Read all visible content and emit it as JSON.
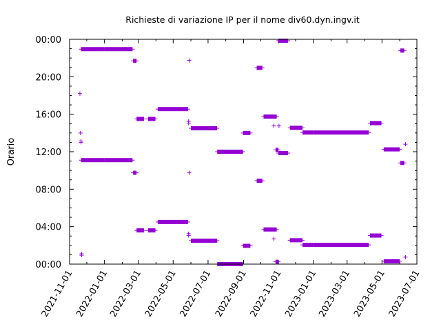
{
  "chart_data": {
    "type": "scatter",
    "title": "Richieste di variazione IP per il nome div60.dyn.ingv.it",
    "ylabel": "Orario",
    "xlabel": "",
    "x_axis": "date",
    "xlim": [
      "2021-11-01",
      "2023-07-01"
    ],
    "ylim_hours": [
      0,
      24
    ],
    "grid": false,
    "marker": "plus",
    "color": "#9400d3",
    "y_ticks": [
      {
        "hour": 0,
        "label": "00:00"
      },
      {
        "hour": 4,
        "label": "04:00"
      },
      {
        "hour": 8,
        "label": "08:00"
      },
      {
        "hour": 12,
        "label": "12:00"
      },
      {
        "hour": 16,
        "label": "16:00"
      },
      {
        "hour": 20,
        "label": "20:00"
      },
      {
        "hour": 24,
        "label": "00:00"
      }
    ],
    "x_ticks": [
      {
        "date": "2021-11-01",
        "label": "2021-11-01"
      },
      {
        "date": "2022-01-01",
        "label": "2022-01-01"
      },
      {
        "date": "2022-03-01",
        "label": "2022-03-01"
      },
      {
        "date": "2022-05-01",
        "label": "2022-05-01"
      },
      {
        "date": "2022-07-01",
        "label": "2022-07-01"
      },
      {
        "date": "2022-09-01",
        "label": "2022-09-01"
      },
      {
        "date": "2022-11-01",
        "label": "2022-11-01"
      },
      {
        "date": "2023-01-01",
        "label": "2023-01-01"
      },
      {
        "date": "2023-03-01",
        "label": "2023-03-01"
      },
      {
        "date": "2023-05-01",
        "label": "2023-05-01"
      },
      {
        "date": "2023-07-01",
        "label": "2023-07-01"
      }
    ],
    "runs": [
      {
        "start": "2021-11-21",
        "end": "2022-01-01",
        "hour": 22.95
      },
      {
        "start": "2022-01-01",
        "end": "2022-02-19",
        "hour": 22.95
      },
      {
        "start": "2021-11-21",
        "end": "2022-01-01",
        "hour": 11.1
      },
      {
        "start": "2022-01-01",
        "end": "2022-02-19",
        "hour": 11.1
      },
      {
        "start": "2022-02-20",
        "end": "2022-02-26",
        "hour": 21.7
      },
      {
        "start": "2022-02-20",
        "end": "2022-02-26",
        "hour": 9.75
      },
      {
        "start": "2022-02-26",
        "end": "2022-03-11",
        "hour": 15.5
      },
      {
        "start": "2022-02-26",
        "end": "2022-03-11",
        "hour": 3.6
      },
      {
        "start": "2022-03-18",
        "end": "2022-03-31",
        "hour": 15.5
      },
      {
        "start": "2022-03-18",
        "end": "2022-03-31",
        "hour": 3.6
      },
      {
        "start": "2022-04-04",
        "end": "2022-05-27",
        "hour": 16.55
      },
      {
        "start": "2022-04-04",
        "end": "2022-05-27",
        "hour": 4.5
      },
      {
        "start": "2022-06-01",
        "end": "2022-07-17",
        "hour": 14.5
      },
      {
        "start": "2022-06-01",
        "end": "2022-07-17",
        "hour": 2.5
      },
      {
        "start": "2022-07-17",
        "end": "2022-08-31",
        "hour": 12.0
      },
      {
        "start": "2022-07-17",
        "end": "2022-08-31",
        "hour": 0.0
      },
      {
        "start": "2022-08-31",
        "end": "2022-09-13",
        "hour": 14.0
      },
      {
        "start": "2022-08-31",
        "end": "2022-09-13",
        "hour": 1.95
      },
      {
        "start": "2022-09-24",
        "end": "2022-10-04",
        "hour": 20.95
      },
      {
        "start": "2022-09-24",
        "end": "2022-10-04",
        "hour": 8.9
      },
      {
        "start": "2022-10-06",
        "end": "2022-10-29",
        "hour": 15.75
      },
      {
        "start": "2022-10-06",
        "end": "2022-10-29",
        "hour": 3.7
      },
      {
        "start": "2022-10-27",
        "end": "2022-11-01",
        "hour": 12.2
      },
      {
        "start": "2022-10-27",
        "end": "2022-11-01",
        "hour": 0.25
      },
      {
        "start": "2022-11-01",
        "end": "2022-11-18",
        "hour": 11.85
      },
      {
        "start": "2022-11-01",
        "end": "2022-11-18",
        "hour": 23.85
      },
      {
        "start": "2022-11-21",
        "end": "2022-12-13",
        "hour": 14.55
      },
      {
        "start": "2022-11-21",
        "end": "2022-12-13",
        "hour": 2.55
      },
      {
        "start": "2022-12-13",
        "end": "2023-01-01",
        "hour": 14.05
      },
      {
        "start": "2022-12-13",
        "end": "2023-01-01",
        "hour": 2.05
      },
      {
        "start": "2023-01-01",
        "end": "2023-04-08",
        "hour": 14.05
      },
      {
        "start": "2023-01-01",
        "end": "2023-04-08",
        "hour": 2.05
      },
      {
        "start": "2023-04-10",
        "end": "2023-04-30",
        "hour": 15.05
      },
      {
        "start": "2023-04-10",
        "end": "2023-04-30",
        "hour": 3.05
      },
      {
        "start": "2023-05-04",
        "end": "2023-06-01",
        "hour": 12.25
      },
      {
        "start": "2023-05-04",
        "end": "2023-06-01",
        "hour": 0.3
      },
      {
        "start": "2023-06-02",
        "end": "2023-06-09",
        "hour": 22.8
      },
      {
        "start": "2023-06-02",
        "end": "2023-06-09",
        "hour": 10.8
      }
    ],
    "points": [
      {
        "date": "2021-11-19",
        "hour": 18.2
      },
      {
        "date": "2021-11-20",
        "hour": 14.0
      },
      {
        "date": "2021-11-21",
        "hour": 13.15
      },
      {
        "date": "2021-11-21",
        "hour": 13.0
      },
      {
        "date": "2021-11-22",
        "hour": 1.1
      },
      {
        "date": "2021-11-22",
        "hour": 0.95
      },
      {
        "date": "2022-05-29",
        "hour": 21.75
      },
      {
        "date": "2022-05-28",
        "hour": 15.25
      },
      {
        "date": "2022-05-28",
        "hour": 15.05
      },
      {
        "date": "2022-05-29",
        "hour": 9.75
      },
      {
        "date": "2022-05-28",
        "hour": 3.25
      },
      {
        "date": "2022-05-28",
        "hour": 3.05
      },
      {
        "date": "2022-10-24",
        "hour": 14.75
      },
      {
        "date": "2022-10-24",
        "hour": 2.7
      },
      {
        "date": "2022-11-02",
        "hour": 14.75
      },
      {
        "date": "2023-06-11",
        "hour": 12.8
      },
      {
        "date": "2023-06-11",
        "hour": 0.75
      }
    ]
  }
}
